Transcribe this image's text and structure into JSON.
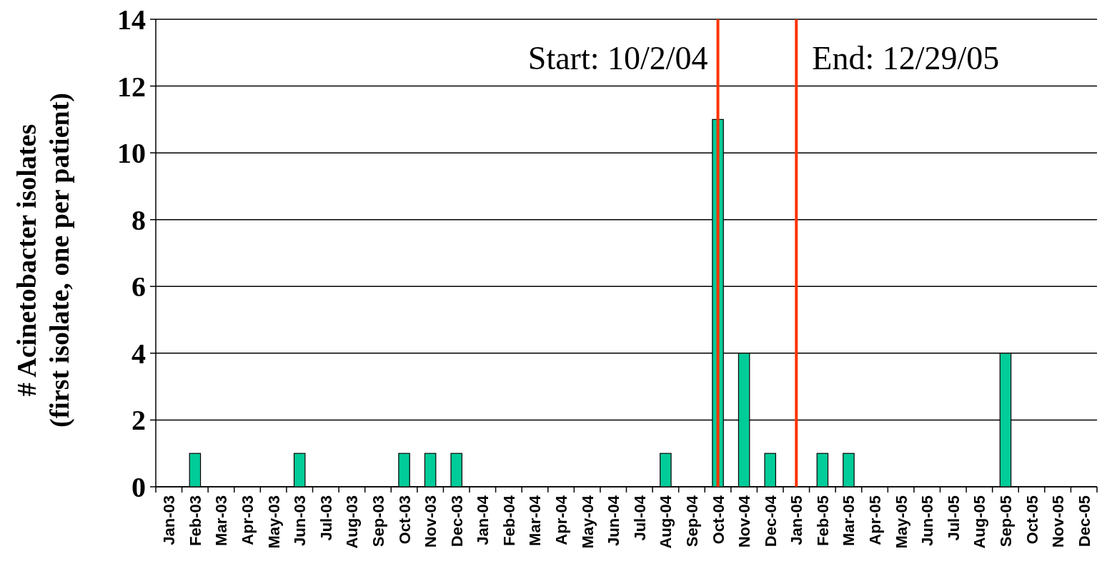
{
  "chart_data": {
    "type": "bar",
    "ylabel": "# Acinetobacter isolates\n(first isolate, one per patient)",
    "categories": [
      "Jan-03",
      "Feb-03",
      "Mar-03",
      "Apr-03",
      "May-03",
      "Jun-03",
      "Jul-03",
      "Aug-03",
      "Sep-03",
      "Oct-03",
      "Nov-03",
      "Dec-03",
      "Jan-04",
      "Feb-04",
      "Mar-04",
      "Apr-04",
      "May-04",
      "Jun-04",
      "Jul-04",
      "Aug-04",
      "Sep-04",
      "Oct-04",
      "Nov-04",
      "Dec-04",
      "Jan-05",
      "Feb-05",
      "Mar-05",
      "Apr-05",
      "May-05",
      "Jun-05",
      "Jul-05",
      "Aug-05",
      "Sep-05",
      "Oct-05",
      "Nov-05",
      "Dec-05"
    ],
    "values": [
      0,
      1,
      0,
      0,
      0,
      1,
      0,
      0,
      0,
      1,
      1,
      1,
      0,
      0,
      0,
      0,
      0,
      0,
      0,
      1,
      0,
      11,
      4,
      1,
      0,
      1,
      1,
      0,
      0,
      0,
      0,
      0,
      4,
      0,
      0,
      0
    ],
    "color": "#00cc99",
    "ylim": [
      0,
      14
    ],
    "yticks": [
      0,
      2,
      4,
      6,
      8,
      10,
      12,
      14
    ],
    "grid": "y",
    "ref_lines": [
      {
        "axis": "x",
        "value": "Oct-04",
        "label": "Start: 10/2/04",
        "color": "#ff3300"
      },
      {
        "axis": "x",
        "value": "Jan-05",
        "label": "End: 12/29/05",
        "color": "#ff3300"
      }
    ]
  }
}
